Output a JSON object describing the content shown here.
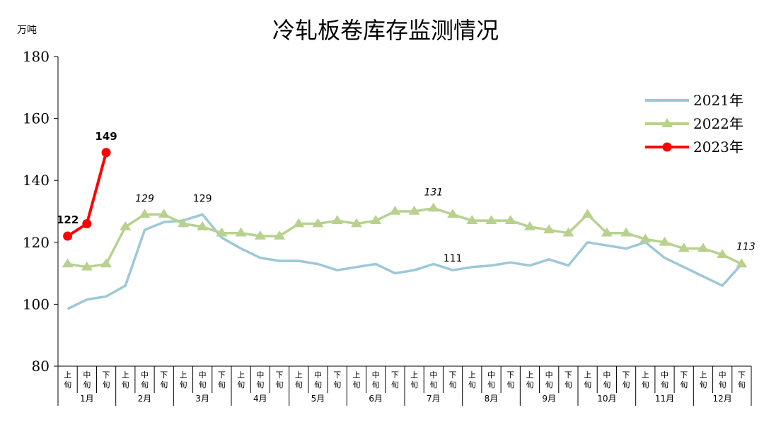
{
  "chart_data": {
    "type": "line",
    "title": "冷轧板卷库存监测情况",
    "ylabel": "万吨",
    "ylim": [
      80,
      180
    ],
    "yticks": [
      "80",
      "100",
      "120",
      "140",
      "160",
      "180"
    ],
    "x_sub_labels": [
      "上",
      "中",
      "下"
    ],
    "x_sub_suffix": "旬",
    "months": [
      "1月",
      "2月",
      "3月",
      "4月",
      "5月",
      "6月",
      "7月",
      "8月",
      "9月",
      "10月",
      "11月",
      "12月"
    ],
    "grid": false,
    "legend_position": "top-right",
    "series": [
      {
        "name": "2021年",
        "color": "#9DC8D8",
        "marker": "none",
        "values": [
          98.5,
          101.5,
          102.5,
          106,
          124,
          126.5,
          127,
          129,
          121.5,
          118,
          115,
          114,
          114,
          113,
          111,
          112,
          113,
          110,
          111,
          113,
          111,
          112,
          112.5,
          113.5,
          112.5,
          114.5,
          112.5,
          120,
          119,
          118,
          120,
          115,
          112,
          109,
          106,
          113
        ]
      },
      {
        "name": "2022年",
        "color": "#B8D18F",
        "marker": "triangle",
        "values": [
          113,
          112,
          113,
          125,
          129,
          129,
          126,
          125,
          123,
          123,
          122,
          122,
          126,
          126,
          127,
          126,
          127,
          130,
          130,
          131,
          129,
          127,
          127,
          127,
          125,
          124,
          123,
          129,
          123,
          123,
          121,
          120,
          118,
          118,
          116,
          113
        ]
      },
      {
        "name": "2023年",
        "color": "#FF0000",
        "marker": "circle",
        "values": [
          122,
          126,
          149
        ]
      }
    ],
    "annotations": [
      {
        "text": "122",
        "index": 0,
        "y": 122,
        "style": "bold"
      },
      {
        "text": "149",
        "index": 2,
        "y": 149,
        "style": "bold"
      },
      {
        "text": "129",
        "index": 4,
        "y": 129,
        "style": "italic"
      },
      {
        "text": "129",
        "index": 7,
        "y": 129,
        "style": "normal"
      },
      {
        "text": "131",
        "index": 19,
        "y": 131,
        "style": "italic"
      },
      {
        "text": "111",
        "index": 20,
        "y": 111,
        "style": "normal"
      },
      {
        "text": "113",
        "index": 35,
        "y": 113,
        "style": "italic"
      }
    ]
  }
}
